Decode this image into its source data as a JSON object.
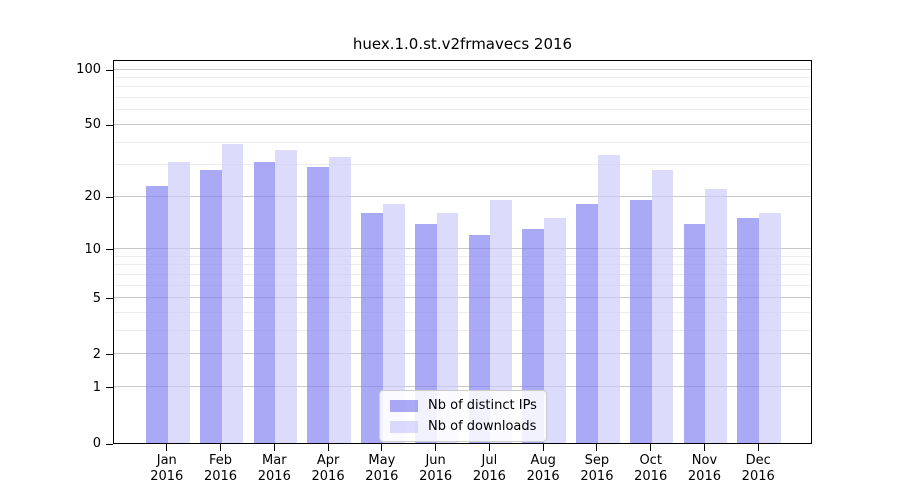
{
  "chart_data": {
    "type": "bar",
    "title": "huex.1.0.st.v2frmavecs 2016",
    "x_axis": {
      "categories": [
        "Jan",
        "Feb",
        "Mar",
        "Apr",
        "May",
        "Jun",
        "Jul",
        "Aug",
        "Sep",
        "Oct",
        "Nov",
        "Dec"
      ],
      "year_label": "2016"
    },
    "y_axis": {
      "scale": "log1p",
      "major_ticks": [
        0,
        1,
        2,
        5,
        10,
        20,
        50,
        100
      ],
      "major_tick_labels": [
        "0",
        "1",
        "2",
        "5",
        "10",
        "20",
        "50",
        "100"
      ],
      "minor_ticks": [
        3,
        4,
        6,
        7,
        8,
        9,
        30,
        40,
        60,
        70,
        80,
        90
      ],
      "ylim": [
        0,
        112
      ],
      "grid": true
    },
    "series": [
      {
        "name": "Nb of distinct IPs",
        "color": "#7c7cf2",
        "alpha": 0.66,
        "values": [
          23,
          28,
          31,
          29,
          16,
          14,
          12,
          13,
          18,
          19,
          14,
          15
        ]
      },
      {
        "name": "Nb of downloads",
        "color": "#cac9fa",
        "alpha": 0.66,
        "values": [
          31,
          39,
          36,
          33,
          18,
          16,
          19,
          15,
          34,
          28,
          22,
          16
        ]
      }
    ],
    "legend_position": "lower-center"
  },
  "colors": {
    "background": "#ffffff",
    "axis": "#000000",
    "major_grid": "#c9c9c9",
    "minor_grid": "#ececec"
  }
}
